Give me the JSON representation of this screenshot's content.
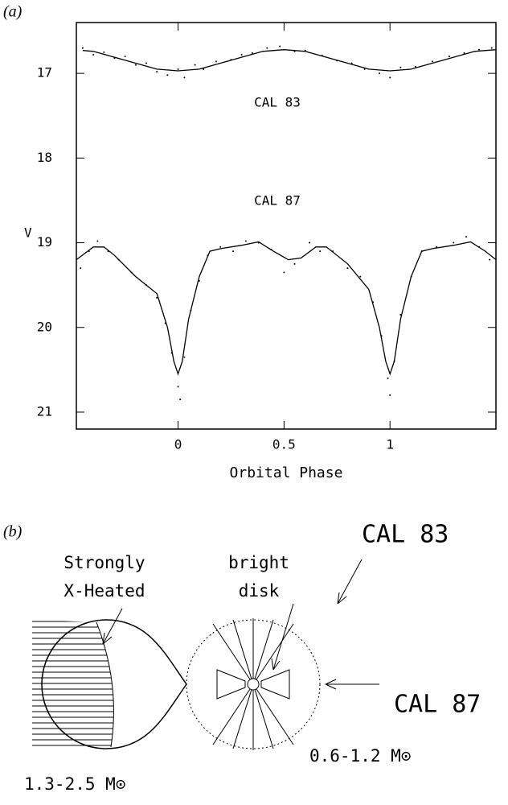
{
  "chart_data": {
    "type": "line",
    "panel_label": "(a)",
    "ylabel": "V",
    "xlabel": "Orbital Phase",
    "xlim": [
      -0.48,
      1.5
    ],
    "ylim": [
      21.2,
      16.4
    ],
    "xticks": [
      0,
      0.5,
      1
    ],
    "yticks": [
      17,
      18,
      19,
      20,
      21
    ],
    "color": "#000000",
    "series": [
      {
        "name": "CAL 83",
        "x": [
          -0.45,
          -0.4,
          -0.3,
          -0.2,
          -0.1,
          0,
          0.1,
          0.2,
          0.3,
          0.4,
          0.5,
          0.6,
          0.7,
          0.8,
          0.9,
          1.0,
          1.1,
          1.2,
          1.3,
          1.4,
          1.5
        ],
        "values": [
          16.73,
          16.74,
          16.81,
          16.88,
          16.95,
          16.97,
          16.95,
          16.88,
          16.81,
          16.74,
          16.72,
          16.74,
          16.81,
          16.88,
          16.95,
          16.97,
          16.95,
          16.88,
          16.81,
          16.74,
          16.72
        ],
        "observed_x": [
          -0.45,
          -0.4,
          -0.35,
          -0.3,
          -0.25,
          -0.2,
          -0.15,
          -0.1,
          -0.05,
          0,
          0.03,
          0.08,
          0.12,
          0.18,
          0.25,
          0.3,
          0.35,
          0.42,
          0.48,
          0.55,
          0.6,
          0.68,
          0.75,
          0.82,
          0.88,
          0.95,
          1.0,
          1.05,
          1.12,
          1.2,
          1.28,
          1.35,
          1.42,
          1.48
        ],
        "observed_values": [
          16.7,
          16.78,
          16.75,
          16.82,
          16.8,
          16.9,
          16.88,
          16.98,
          17.02,
          16.95,
          17.05,
          16.9,
          16.95,
          16.86,
          16.84,
          16.78,
          16.76,
          16.7,
          16.68,
          16.74,
          16.73,
          16.79,
          16.85,
          16.88,
          16.95,
          17.0,
          17.05,
          16.93,
          16.92,
          16.86,
          16.8,
          16.76,
          16.72,
          16.7
        ]
      },
      {
        "name": "CAL 87",
        "x": [
          -0.48,
          -0.4,
          -0.35,
          -0.3,
          -0.2,
          -0.1,
          -0.05,
          -0.02,
          0,
          0.02,
          0.05,
          0.1,
          0.15,
          0.2,
          0.3,
          0.38,
          0.45,
          0.52,
          0.58,
          0.65,
          0.7,
          0.8,
          0.9,
          0.95,
          0.98,
          1.0,
          1.02,
          1.05,
          1.1,
          1.15,
          1.2,
          1.3,
          1.38,
          1.45,
          1.5
        ],
        "values": [
          19.2,
          19.05,
          19.05,
          19.15,
          19.4,
          19.6,
          20.0,
          20.4,
          20.55,
          20.4,
          19.9,
          19.4,
          19.1,
          19.07,
          19.03,
          18.99,
          19.1,
          19.2,
          19.18,
          19.05,
          19.05,
          19.25,
          19.55,
          20.0,
          20.4,
          20.55,
          20.4,
          19.9,
          19.4,
          19.1,
          19.07,
          19.03,
          18.99,
          19.1,
          19.2
        ],
        "observed_x": [
          -0.46,
          -0.42,
          -0.38,
          -0.33,
          -0.28,
          -0.22,
          -0.15,
          -0.1,
          -0.06,
          -0.03,
          0,
          0.01,
          0.03,
          0.06,
          0.1,
          0.14,
          0.2,
          0.26,
          0.32,
          0.38,
          0.44,
          0.5,
          0.55,
          0.62,
          0.67,
          0.73,
          0.8,
          0.86,
          0.92,
          0.96,
          0.99,
          1.0,
          1.02,
          1.05,
          1.1,
          1.15,
          1.22,
          1.3,
          1.36,
          1.42,
          1.47
        ],
        "observed_values": [
          19.3,
          19.1,
          18.98,
          19.1,
          19.2,
          19.35,
          19.5,
          19.65,
          19.95,
          20.3,
          20.7,
          20.85,
          20.35,
          19.8,
          19.45,
          19.15,
          19.05,
          19.1,
          18.98,
          19.0,
          19.08,
          19.35,
          19.25,
          19.0,
          19.1,
          19.1,
          19.3,
          19.4,
          19.7,
          20.1,
          20.6,
          20.8,
          20.4,
          19.85,
          19.4,
          19.1,
          19.05,
          19.0,
          18.93,
          19.05,
          19.2
        ]
      }
    ]
  },
  "diagram": {
    "panel_label": "(b)",
    "heated_label": [
      "Strongly",
      "X-Heated"
    ],
    "disk_label": [
      "bright",
      "disk"
    ],
    "cal83_label": "CAL 83",
    "cal87_label": "CAL 87",
    "donor_mass": "1.3-2.5 M⊙",
    "white_dwarf_mass": "0.6-1.2 M⊙"
  }
}
